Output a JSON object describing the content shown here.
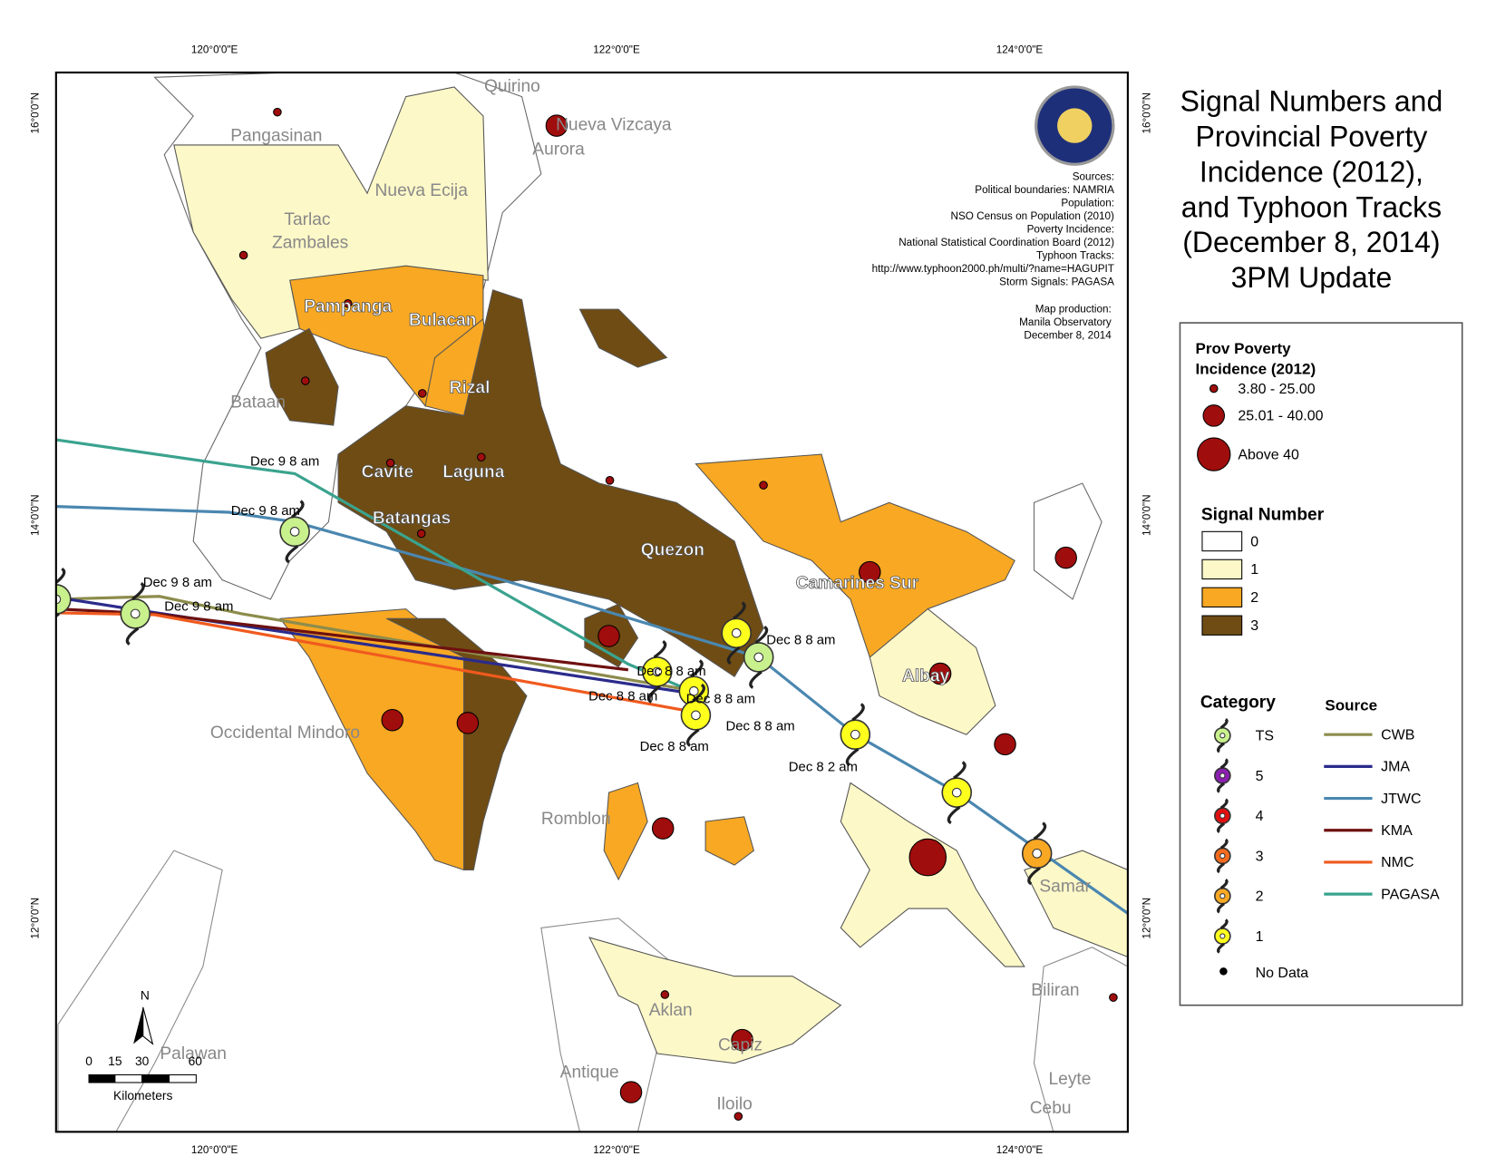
{
  "title_lines": [
    "Signal Numbers and",
    "Provincial Poverty",
    "Incidence (2012),",
    "and Typhoon Tracks",
    "(December 8, 2014)",
    "3PM Update"
  ],
  "graticule": {
    "top": [
      "120°0'0\"E",
      "122°0'0\"E",
      "124°0'0\"E"
    ],
    "left": [
      "16°0'0\"N",
      "14°0'0\"N",
      "12°0'0\"N"
    ]
  },
  "sources": [
    "Sources:",
    "Political boundaries: NAMRIA",
    "Population:",
    "NSO Census on Population (2010)",
    "Poverty Incidence:",
    "National Statistical Coordination Board (2012)",
    "Typhoon Tracks:",
    "http://www.typhoon2000.ph/multi/?name=HAGUPIT",
    "Storm Signals: PAGASA"
  ],
  "credits": [
    "Map production:",
    "Manila Observatory",
    "December 8, 2014"
  ],
  "places": [
    "Quirino",
    "Nueva Vizcaya",
    "Aurora",
    "Pangasinan",
    "Nueva Ecija",
    "Tarlac",
    "Zambales",
    "Pampanga",
    "Bulacan",
    "Rizal",
    "Bataan",
    "Cavite",
    "Laguna",
    "Batangas",
    "Quezon",
    "Camarines Sur",
    "Albay",
    "Occidental Mindoro",
    "Romblon",
    "Samar",
    "Biliran",
    "Aklan",
    "Capiz",
    "Palawan",
    "Antique",
    "Iloilo",
    "Leyte",
    "Cebu"
  ],
  "track_labels": [
    "Dec 9 8 am",
    "Dec 9 8 am",
    "Dec 9 8 am",
    "Dec 9 8 am",
    "Dec 8 8 am",
    "Dec 8 8 am",
    "Dec 8 8 am",
    "Dec 8 8 am",
    "Dec 8 8 am",
    "Dec 8 8 am",
    "Dec 8 2 am"
  ],
  "scale": {
    "ticks": [
      "0",
      "15",
      "30",
      "60"
    ],
    "unit": "Kilometers",
    "north": "N"
  },
  "legend": {
    "poverty": {
      "title_lines": [
        "Prov Poverty",
        "Incidence (2012)"
      ],
      "classes": [
        "3.80 - 25.00",
        "25.01 - 40.00",
        "Above 40"
      ],
      "color": "#a00d0d"
    },
    "signal": {
      "title": "Signal Number",
      "items": [
        {
          "label": "0",
          "color": "#ffffff"
        },
        {
          "label": "1",
          "color": "#fdf8c8"
        },
        {
          "label": "2",
          "color": "#f8a823"
        },
        {
          "label": "3",
          "color": "#6f4c14"
        }
      ]
    },
    "category": {
      "title": "Category",
      "items": [
        {
          "label": "TS",
          "color": "#c8f08c"
        },
        {
          "label": "5",
          "color": "#8b1fb0"
        },
        {
          "label": "4",
          "color": "#e01010"
        },
        {
          "label": "3",
          "color": "#f46a1e"
        },
        {
          "label": "2",
          "color": "#f8a823"
        },
        {
          "label": "1",
          "color": "#ffff1e"
        }
      ],
      "no_data": "No Data"
    },
    "source": {
      "title": "Source",
      "items": [
        {
          "label": "CWB",
          "color": "#8c8c4c"
        },
        {
          "label": "JMA",
          "color": "#2b2b8c"
        },
        {
          "label": "JTWC",
          "color": "#4a87b0"
        },
        {
          "label": "KMA",
          "color": "#6e1010"
        },
        {
          "label": "NMC",
          "color": "#f05a1e"
        },
        {
          "label": "PAGASA",
          "color": "#3aa38f"
        }
      ]
    }
  }
}
